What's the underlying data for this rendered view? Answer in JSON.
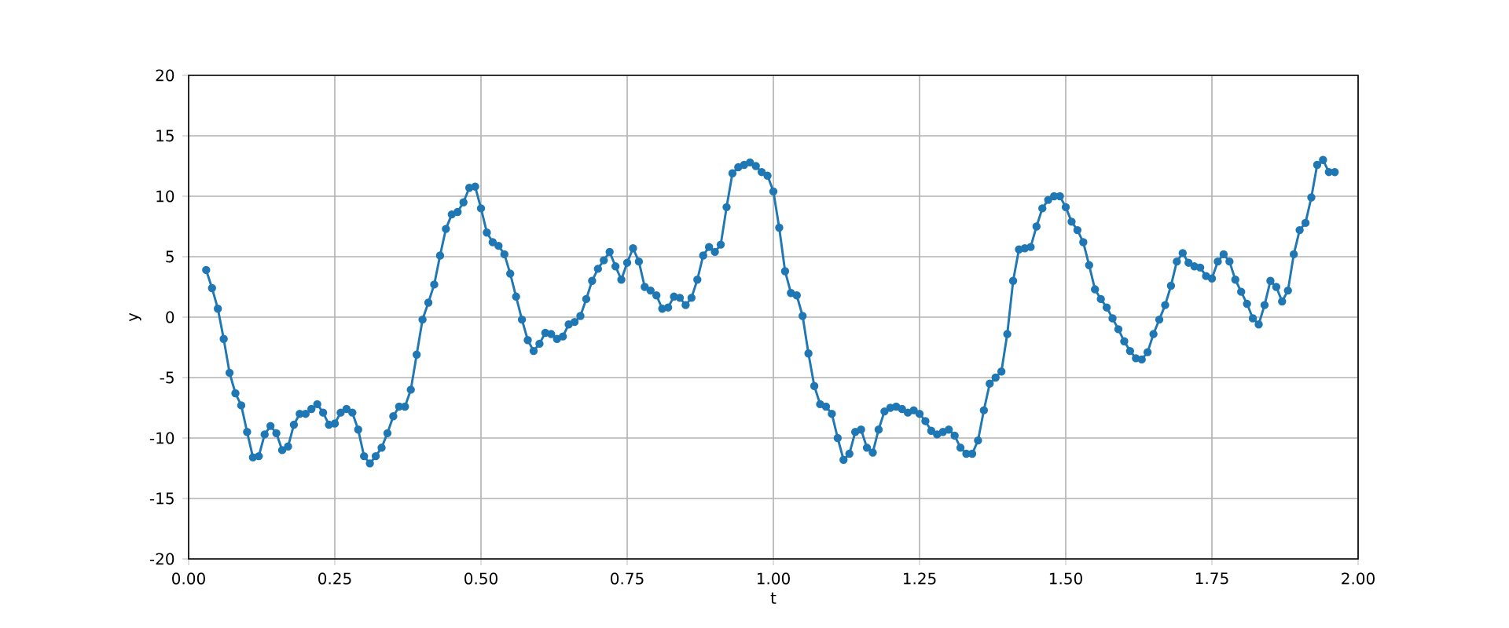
{
  "chart_data": {
    "type": "line",
    "xlabel": "t",
    "ylabel": "y",
    "color": "#1f77b4",
    "marker": "circle",
    "line_style": "solid",
    "grid": true,
    "xlim": [
      0,
      2
    ],
    "ylim": [
      -20,
      20
    ],
    "xticks": [
      {
        "value": 0,
        "label": "0.00"
      },
      {
        "value": 0.25,
        "label": "0.25"
      },
      {
        "value": 0.5,
        "label": "0.50"
      },
      {
        "value": 0.75,
        "label": "0.75"
      },
      {
        "value": 1,
        "label": "1.00"
      },
      {
        "value": 1.25,
        "label": "1.25"
      },
      {
        "value": 1.5,
        "label": "1.50"
      },
      {
        "value": 1.75,
        "label": "1.75"
      },
      {
        "value": 2,
        "label": "2.00"
      }
    ],
    "yticks": [
      -20,
      -15,
      -10,
      -5,
      0,
      5,
      10,
      15,
      20
    ],
    "x": [
      0.03,
      0.04,
      0.05,
      0.06,
      0.07,
      0.08,
      0.09,
      0.1,
      0.11,
      0.12,
      0.13,
      0.14,
      0.15,
      0.16,
      0.17,
      0.18,
      0.19,
      0.2,
      0.21,
      0.22,
      0.23,
      0.24,
      0.25,
      0.26,
      0.27,
      0.28,
      0.29,
      0.3,
      0.31,
      0.32,
      0.33,
      0.34,
      0.35,
      0.36,
      0.37,
      0.38,
      0.39,
      0.4,
      0.41,
      0.42,
      0.43,
      0.44,
      0.45,
      0.46,
      0.47,
      0.48,
      0.49,
      0.5,
      0.51,
      0.52,
      0.53,
      0.54,
      0.55,
      0.56,
      0.57,
      0.58,
      0.59,
      0.6,
      0.61,
      0.62,
      0.63,
      0.64,
      0.65,
      0.66,
      0.67,
      0.68,
      0.69,
      0.7,
      0.71,
      0.72,
      0.73,
      0.74,
      0.75,
      0.76,
      0.77,
      0.78,
      0.79,
      0.8,
      0.81,
      0.82,
      0.83,
      0.84,
      0.85,
      0.86,
      0.87,
      0.88,
      0.89,
      0.9,
      0.91,
      0.92,
      0.93,
      0.94,
      0.95,
      0.96,
      0.97,
      0.98,
      0.99,
      1.0,
      1.01,
      1.02,
      1.03,
      1.04,
      1.05,
      1.06,
      1.07,
      1.08,
      1.09,
      1.1,
      1.11,
      1.12,
      1.13,
      1.14,
      1.15,
      1.16,
      1.17,
      1.18,
      1.19,
      1.2,
      1.21,
      1.22,
      1.23,
      1.24,
      1.25,
      1.26,
      1.27,
      1.28,
      1.29,
      1.3,
      1.31,
      1.32,
      1.33,
      1.34,
      1.35,
      1.36,
      1.37,
      1.38,
      1.39,
      1.4,
      1.41,
      1.42,
      1.43,
      1.44,
      1.45,
      1.46,
      1.47,
      1.48,
      1.49,
      1.5,
      1.51,
      1.52,
      1.53,
      1.54,
      1.55,
      1.56,
      1.57,
      1.58,
      1.59,
      1.6,
      1.61,
      1.62,
      1.63,
      1.64,
      1.65,
      1.66,
      1.67,
      1.68,
      1.69,
      1.7,
      1.71,
      1.72,
      1.73,
      1.74,
      1.75,
      1.76,
      1.77,
      1.78,
      1.79,
      1.8,
      1.81,
      1.82,
      1.83,
      1.84,
      1.85,
      1.86,
      1.87,
      1.88,
      1.89,
      1.9,
      1.91,
      1.92,
      1.93,
      1.94,
      1.95,
      1.96
    ],
    "values": [
      3.9,
      2.4,
      0.7,
      -1.8,
      -4.6,
      -6.3,
      -7.3,
      -9.5,
      -11.6,
      -11.5,
      -9.7,
      -9.0,
      -9.6,
      -11.0,
      -10.7,
      -8.9,
      -8.0,
      -8.0,
      -7.6,
      -7.2,
      -7.9,
      -8.9,
      -8.8,
      -7.9,
      -7.6,
      -7.9,
      -9.3,
      -11.5,
      -12.1,
      -11.5,
      -10.8,
      -9.6,
      -8.2,
      -7.4,
      -7.4,
      -6.0,
      -3.1,
      -0.2,
      1.2,
      2.7,
      5.1,
      7.3,
      8.5,
      8.7,
      9.5,
      10.7,
      10.8,
      9.0,
      7.0,
      6.2,
      5.9,
      5.2,
      3.6,
      1.7,
      -0.2,
      -1.9,
      -2.8,
      -2.2,
      -1.3,
      -1.4,
      -1.8,
      -1.6,
      -0.6,
      -0.4,
      0.1,
      1.5,
      3.0,
      4.0,
      4.7,
      5.4,
      4.2,
      3.1,
      4.5,
      5.7,
      4.6,
      2.5,
      2.2,
      1.8,
      0.7,
      0.8,
      1.7,
      1.6,
      1.0,
      1.6,
      3.1,
      5.1,
      5.8,
      5.4,
      6.0,
      9.1,
      11.9,
      12.4,
      12.6,
      12.8,
      12.5,
      12.0,
      11.7,
      10.4,
      7.4,
      3.8,
      2.0,
      1.8,
      0.1,
      -3.0,
      -5.7,
      -7.2,
      -7.4,
      -8.0,
      -10.0,
      -11.8,
      -11.3,
      -9.5,
      -9.3,
      -10.8,
      -11.2,
      -9.3,
      -7.8,
      -7.5,
      -7.4,
      -7.6,
      -7.9,
      -7.7,
      -8.0,
      -8.6,
      -9.4,
      -9.7,
      -9.5,
      -9.3,
      -9.8,
      -10.8,
      -11.3,
      -11.3,
      -10.2,
      -7.7,
      -5.5,
      -5.0,
      -4.5,
      -1.4,
      3.0,
      5.6,
      5.7,
      5.8,
      7.5,
      9.0,
      9.7,
      10.0,
      10.0,
      9.1,
      7.9,
      7.2,
      6.2,
      4.3,
      2.3,
      1.5,
      0.8,
      -0.1,
      -1.0,
      -2.0,
      -2.8,
      -3.4,
      -3.5,
      -2.9,
      -1.4,
      -0.2,
      1.0,
      2.6,
      4.6,
      5.3,
      4.5,
      4.2,
      4.1,
      3.4,
      3.2,
      4.6,
      5.2,
      4.6,
      3.1,
      2.1,
      1.1,
      -0.1,
      -0.6,
      1.0,
      3.0,
      2.5,
      1.3,
      2.2,
      5.2,
      7.2,
      7.8,
      9.9,
      12.6,
      13.0,
      12.0,
      12.0
    ]
  }
}
